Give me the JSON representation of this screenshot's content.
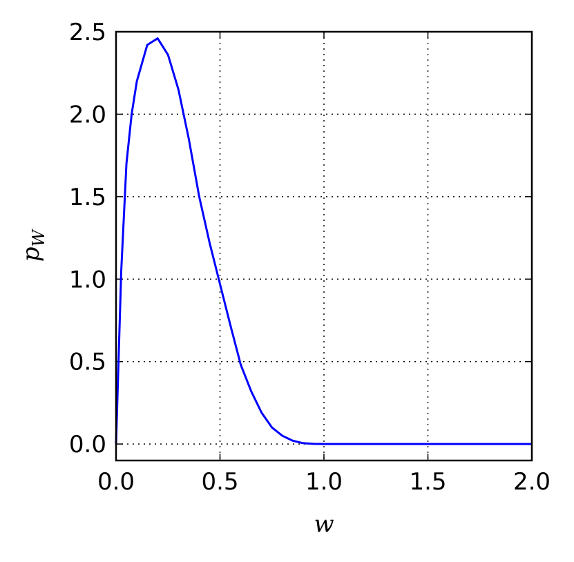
{
  "chart_data": {
    "type": "line",
    "xlabel": "w",
    "ylabel": {
      "text": "p",
      "subscript": "W"
    },
    "x": [
      0,
      0.025,
      0.05,
      0.075,
      0.1,
      0.15,
      0.2,
      0.25,
      0.3,
      0.35,
      0.4,
      0.45,
      0.5,
      0.55,
      0.6,
      0.65,
      0.7,
      0.75,
      0.8,
      0.85,
      0.9,
      0.95,
      1.0,
      1.5,
      2.0
    ],
    "series": [
      {
        "color": "#0000ff",
        "values": [
          0,
          1.05,
          1.7,
          2.0,
          2.2,
          2.42,
          2.46,
          2.36,
          2.15,
          1.85,
          1.5,
          1.22,
          0.97,
          0.72,
          0.48,
          0.32,
          0.19,
          0.1,
          0.05,
          0.02,
          0.005,
          0.001,
          0,
          0,
          0
        ]
      }
    ],
    "xlim": [
      0,
      2.0
    ],
    "ylim": [
      -0.1,
      2.5
    ],
    "xticks": [
      {
        "value": 0,
        "label": "0.0"
      },
      0.5,
      {
        "value": 1,
        "label": "1.0"
      },
      1.5,
      {
        "value": 2,
        "label": "2.0"
      }
    ],
    "yticks": [
      {
        "value": 0,
        "label": "0.0"
      },
      0.5,
      {
        "value": 1,
        "label": "1.0"
      },
      1.5,
      {
        "value": 2,
        "label": "2.0"
      },
      2.5
    ],
    "grid": true
  }
}
